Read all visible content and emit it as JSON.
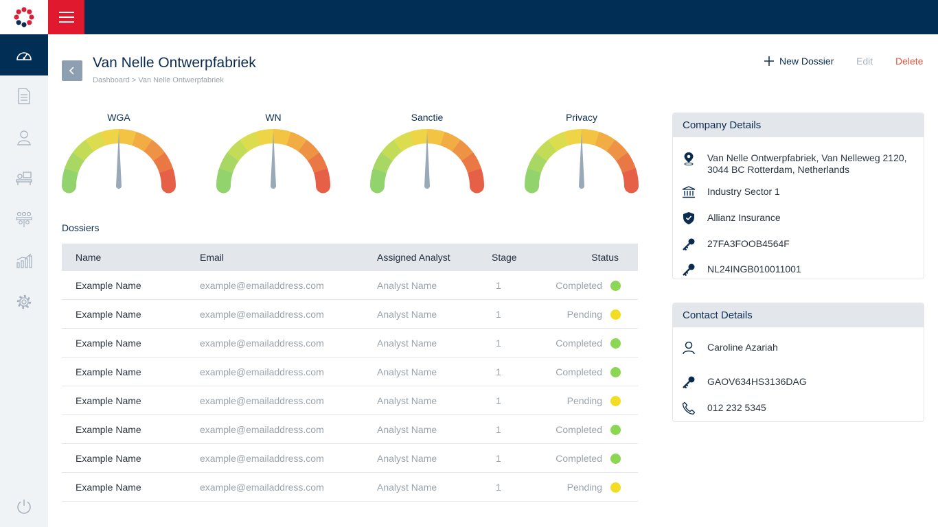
{
  "header": {
    "title": "Van Nelle Ontwerpfabriek",
    "breadcrumb": "Dashboard > Van Nelle Ontwerpfabriek",
    "new_dossier": "New Dossier",
    "edit": "Edit",
    "delete": "Delete"
  },
  "sidebar": {
    "items": [
      "dashboard-icon",
      "document-icon",
      "person-icon",
      "desk-icon",
      "team-icon",
      "bar-chart-icon",
      "gear-icon",
      "power-icon"
    ],
    "active": "dashboard-icon"
  },
  "gauges": [
    {
      "label": "WGA",
      "level": 0.5
    },
    {
      "label": "WN",
      "level": 0.5
    },
    {
      "label": "Sanctie",
      "level": 0.5
    },
    {
      "label": "Privacy",
      "level": 0.5
    }
  ],
  "dossiers": {
    "label": "Dossiers",
    "columns": {
      "name": "Name",
      "email": "Email",
      "analyst": "Assigned Analyst",
      "stage": "Stage",
      "status": "Status"
    },
    "rows": [
      {
        "name": "Example Name",
        "email": "example@emailaddress.com",
        "analyst": "Analyst Name",
        "stage": "1",
        "status": "Completed"
      },
      {
        "name": "Example Name",
        "email": "example@emailaddress.com",
        "analyst": "Analyst Name",
        "stage": "1",
        "status": "Pending"
      },
      {
        "name": "Example Name",
        "email": "example@emailaddress.com",
        "analyst": "Analyst Name",
        "stage": "1",
        "status": "Completed"
      },
      {
        "name": "Example Name",
        "email": "example@emailaddress.com",
        "analyst": "Analyst Name",
        "stage": "1",
        "status": "Completed"
      },
      {
        "name": "Example Name",
        "email": "example@emailaddress.com",
        "analyst": "Analyst Name",
        "stage": "1",
        "status": "Pending"
      },
      {
        "name": "Example Name",
        "email": "example@emailaddress.com",
        "analyst": "Analyst Name",
        "stage": "1",
        "status": "Completed"
      },
      {
        "name": "Example Name",
        "email": "example@emailaddress.com",
        "analyst": "Analyst Name",
        "stage": "1",
        "status": "Completed"
      },
      {
        "name": "Example Name",
        "email": "example@emailaddress.com",
        "analyst": "Analyst Name",
        "stage": "1",
        "status": "Pending"
      }
    ]
  },
  "company": {
    "title": "Company Details",
    "address_line1": "Van Nelle Ontwerpfabriek, Van Nelleweg 2120,",
    "address_line2": "3044 BC Rotterdam, Netherlands",
    "sector": "Industry Sector 1",
    "insurance": "Allianz Insurance",
    "key1": "27FA3FOOB4564F",
    "key2": "NL24INGB010011001"
  },
  "contact": {
    "title": "Contact Details",
    "name": "Caroline Azariah",
    "key": "GAOV634HS3136DAG",
    "phone": "012 232 5345"
  },
  "colors": {
    "navy": "#012e55",
    "brand_red": "#e0192f",
    "completed": "#8bd652",
    "pending": "#f2dc24",
    "delete": "#e8553a"
  }
}
